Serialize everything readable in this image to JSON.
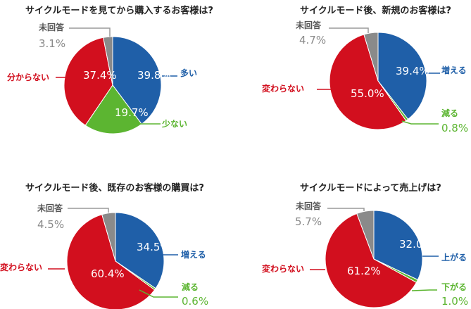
{
  "colors": {
    "blue": "#1f5fa8",
    "red": "#d20f1e",
    "green": "#5cb531",
    "gray": "#8a8a8a",
    "line_gray": "#9a9a9a"
  },
  "chart_data": [
    {
      "type": "pie",
      "title": "サイクルモードを見てから購入するお客様は?",
      "slices": [
        {
          "name": "多い",
          "value": 39.8,
          "value_label": "39.8%",
          "color": "#1f5fa8"
        },
        {
          "name": "少ない",
          "value": 19.7,
          "value_label": "19.7%",
          "color": "#5cb531"
        },
        {
          "name": "分からない",
          "value": 37.4,
          "value_label": "37.4%",
          "color": "#d20f1e"
        },
        {
          "name": "未回答",
          "value": 3.1,
          "value_label": "3.1%",
          "color": "#8a8a8a"
        }
      ]
    },
    {
      "type": "pie",
      "title": "サイクルモード後、新規のお客様は?",
      "slices": [
        {
          "name": "増える",
          "value": 39.4,
          "value_label": "39.4%",
          "color": "#1f5fa8"
        },
        {
          "name": "減る",
          "value": 0.8,
          "value_label": "0.8%",
          "color": "#5cb531"
        },
        {
          "name": "変わらない",
          "value": 55.0,
          "value_label": "55.0%",
          "color": "#d20f1e"
        },
        {
          "name": "未回答",
          "value": 4.7,
          "value_label": "4.7%",
          "color": "#8a8a8a"
        }
      ]
    },
    {
      "type": "pie",
      "title": "サイクルモード後、既存のお客様の購買は?",
      "slices": [
        {
          "name": "増える",
          "value": 34.5,
          "value_label": "34.5%",
          "color": "#1f5fa8"
        },
        {
          "name": "減る",
          "value": 0.6,
          "value_label": "0.6%",
          "color": "#5cb531"
        },
        {
          "name": "変わらない",
          "value": 60.4,
          "value_label": "60.4%",
          "color": "#d20f1e"
        },
        {
          "name": "未回答",
          "value": 4.5,
          "value_label": "4.5%",
          "color": "#8a8a8a"
        }
      ]
    },
    {
      "type": "pie",
      "title": "サイクルモードによって売上げは?",
      "slices": [
        {
          "name": "上がる",
          "value": 32.0,
          "value_label": "32.0%",
          "color": "#1f5fa8"
        },
        {
          "name": "下がる",
          "value": 1.0,
          "value_label": "1.0%",
          "color": "#5cb531"
        },
        {
          "name": "変わらない",
          "value": 61.2,
          "value_label": "61.2%",
          "color": "#d20f1e"
        },
        {
          "name": "未回答",
          "value": 5.7,
          "value_label": "5.7%",
          "color": "#8a8a8a"
        }
      ]
    }
  ]
}
